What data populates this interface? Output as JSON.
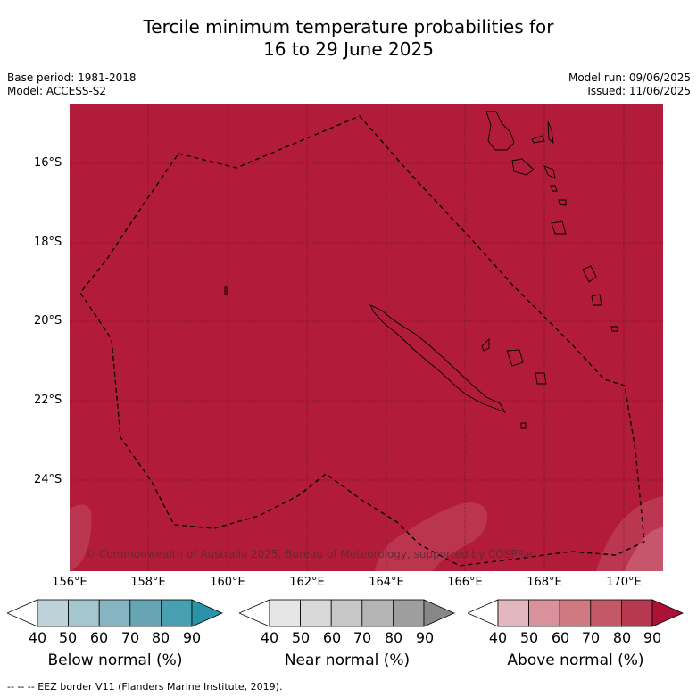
{
  "title": {
    "line1": "Tercile minimum temperature probabilities for",
    "line2": "16 to 29 June 2025"
  },
  "meta": {
    "base_period": "Base period: 1981-2018",
    "model": "Model: ACCESS-S2",
    "model_run": "Model run: 09/06/2025",
    "issued": "Issued: 11/06/2025"
  },
  "map": {
    "background_color": "#b21c3a",
    "lat_labels": [
      "16°S",
      "18°S",
      "20°S",
      "22°S",
      "24°S"
    ],
    "lon_labels": [
      "156°E",
      "158°E",
      "160°E",
      "162°E",
      "164°E",
      "166°E",
      "168°E",
      "170°E"
    ],
    "copyright": "© Commonwealth of Australia 2025, Bureau of Meteorology, supported by COSPPac"
  },
  "colorbars": [
    {
      "name": "Below normal (%)",
      "ticks": [
        "40",
        "50",
        "60",
        "70",
        "80",
        "90"
      ],
      "colors": [
        "#ffffff",
        "#bdd3d9",
        "#a4c6cd",
        "#86b5c1",
        "#66a6b4",
        "#47a0b0",
        "#2b93a8"
      ]
    },
    {
      "name": "Near normal (%)",
      "ticks": [
        "40",
        "50",
        "60",
        "70",
        "80",
        "90"
      ],
      "colors": [
        "#ffffff",
        "#e6e6e6",
        "#d9d9d9",
        "#c8c8c8",
        "#b4b4b4",
        "#9e9e9e",
        "#878787"
      ]
    },
    {
      "name": "Above normal (%)",
      "ticks": [
        "40",
        "50",
        "60",
        "70",
        "80",
        "90"
      ],
      "colors": [
        "#ffffff",
        "#e2b7bf",
        "#d9929b",
        "#cf7a80",
        "#c45966",
        "#b7394f",
        "#ac1237"
      ]
    }
  ],
  "footnote": "--  --  -- EEZ border V11 (Flanders Marine Institute, 2019)."
}
